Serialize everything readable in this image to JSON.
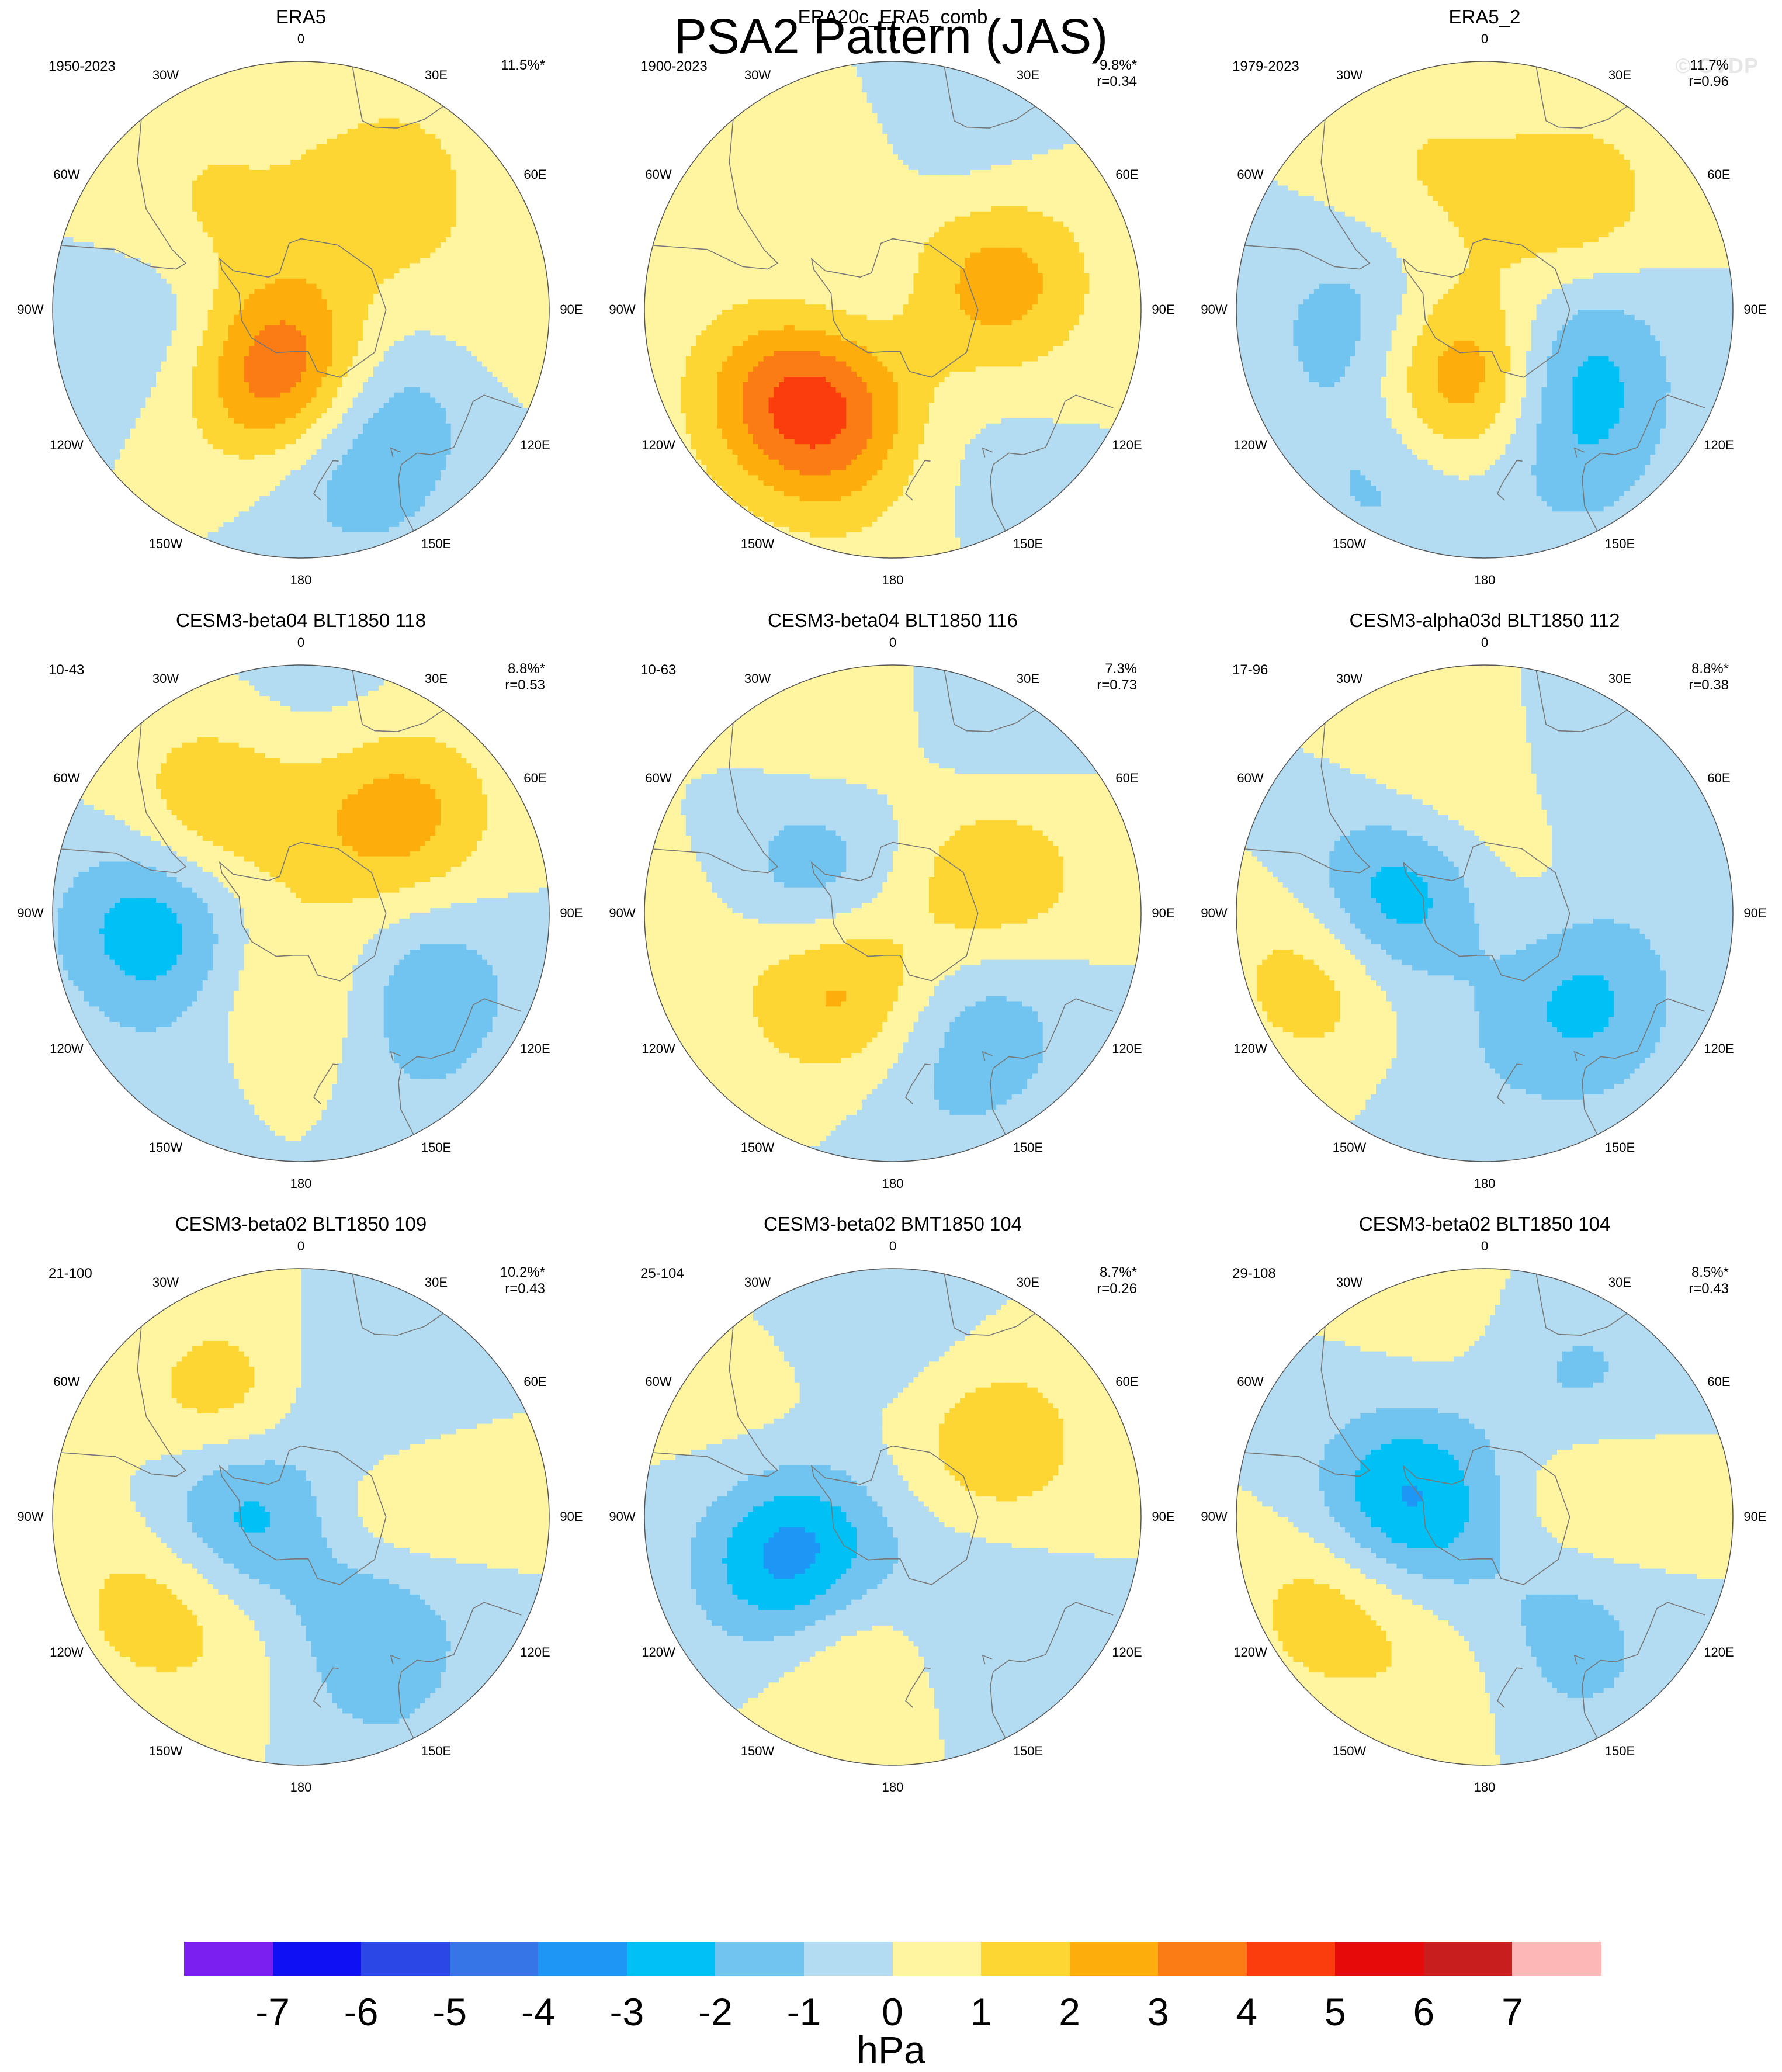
{
  "title": "PSA2 Pattern (JAS)",
  "watermark": "© CVDP",
  "lon_labels": [
    "0",
    "30E",
    "60E",
    "90E",
    "120E",
    "150E",
    "180",
    "150W",
    "120W",
    "90W",
    "60W",
    "30W"
  ],
  "colorbar": {
    "units": "hPa",
    "levels": [
      "-7",
      "-6",
      "-5",
      "-4",
      "-3",
      "-2",
      "-1",
      "0",
      "1",
      "2",
      "3",
      "4",
      "5",
      "6",
      "7"
    ],
    "colors": [
      "#7a1ff0",
      "#1010f5",
      "#2b47e6",
      "#3575e8",
      "#1e96f5",
      "#00c0f5",
      "#70c4ef",
      "#b3dcf2",
      "#fff5a0",
      "#fdd634",
      "#fdad0c",
      "#fb7c14",
      "#fb3c0c",
      "#e60a0a",
      "#c81e1e",
      "#fdb7b7"
    ]
  },
  "chart_data": [
    {
      "type": "heatmap",
      "title": "ERA5",
      "period": "1950-2023",
      "variance": "11.5%*",
      "corr": "",
      "centers": [
        {
          "lon": 30,
          "lat": -48,
          "v": 2.0
        },
        {
          "lon": -50,
          "lat": -55,
          "v": 1.2
        },
        {
          "lon": -95,
          "lat": -58,
          "v": -1.6
        },
        {
          "lon": -150,
          "lat": -72,
          "v": 2.6
        },
        {
          "lon": -170,
          "lat": -72,
          "v": 2.0
        },
        {
          "lon": 140,
          "lat": -55,
          "v": -1.7
        },
        {
          "lon": 165,
          "lat": -40,
          "v": -1.2
        },
        {
          "lon": 5,
          "lat": -35,
          "v": -0.6
        },
        {
          "lon": -20,
          "lat": -30,
          "v": 0.5
        },
        {
          "lon": 90,
          "lat": -35,
          "v": 0.6
        }
      ]
    },
    {
      "type": "heatmap",
      "title": "ERA20c_ERA5_comb",
      "period": "1900-2023",
      "variance": "9.8%*",
      "corr": "r=0.34",
      "centers": [
        {
          "lon": -145,
          "lat": -55,
          "v": 3.6
        },
        {
          "lon": -120,
          "lat": -50,
          "v": 1.5
        },
        {
          "lon": 75,
          "lat": -60,
          "v": 2.6
        },
        {
          "lon": -35,
          "lat": -55,
          "v": 1.5
        },
        {
          "lon": -60,
          "lat": -72,
          "v": -1.4
        },
        {
          "lon": 20,
          "lat": -40,
          "v": -0.8
        },
        {
          "lon": 150,
          "lat": -45,
          "v": -0.5
        },
        {
          "lon": -170,
          "lat": -35,
          "v": 0.4
        }
      ]
    },
    {
      "type": "heatmap",
      "title": "ERA5_2",
      "period": "1979-2023",
      "variance": "11.7%",
      "corr": "r=0.96",
      "centers": [
        {
          "lon": 35,
          "lat": -50,
          "v": 2.0
        },
        {
          "lon": -20,
          "lat": -45,
          "v": 1.0
        },
        {
          "lon": -100,
          "lat": -55,
          "v": -1.8
        },
        {
          "lon": -160,
          "lat": -72,
          "v": 2.8
        },
        {
          "lon": -175,
          "lat": -65,
          "v": 1.2
        },
        {
          "lon": 120,
          "lat": -62,
          "v": -2.3
        },
        {
          "lon": 150,
          "lat": -45,
          "v": -1.6
        },
        {
          "lon": -150,
          "lat": -35,
          "v": -1.3
        },
        {
          "lon": 15,
          "lat": -35,
          "v": -0.5
        }
      ]
    },
    {
      "type": "heatmap",
      "title": "CESM3-beta04 BLT1850 118",
      "period": "10-43",
      "variance": "8.8%*",
      "corr": "r=0.53",
      "centers": [
        {
          "lon": -40,
          "lat": -52,
          "v": 2.0
        },
        {
          "lon": 45,
          "lat": -52,
          "v": 2.6
        },
        {
          "lon": -95,
          "lat": -48,
          "v": -2.8
        },
        {
          "lon": 120,
          "lat": -50,
          "v": -1.8
        },
        {
          "lon": -170,
          "lat": -50,
          "v": 0.5
        },
        {
          "lon": 5,
          "lat": -30,
          "v": -0.6
        },
        {
          "lon": 180,
          "lat": -70,
          "v": 1.2
        },
        {
          "lon": -150,
          "lat": -35,
          "v": -0.6
        },
        {
          "lon": 150,
          "lat": -35,
          "v": -0.5
        }
      ]
    },
    {
      "type": "heatmap",
      "title": "CESM3-beta04 BLT1850 116",
      "period": "10-63",
      "variance": "7.3%",
      "corr": "r=0.73",
      "centers": [
        {
          "lon": -65,
          "lat": -65,
          "v": -2.2
        },
        {
          "lon": -145,
          "lat": -65,
          "v": 2.6
        },
        {
          "lon": 70,
          "lat": -60,
          "v": 2.0
        },
        {
          "lon": 140,
          "lat": -50,
          "v": -1.6
        },
        {
          "lon": -20,
          "lat": -40,
          "v": 0.8
        },
        {
          "lon": -90,
          "lat": -40,
          "v": 0.6
        },
        {
          "lon": 30,
          "lat": -35,
          "v": -0.7
        },
        {
          "lon": 170,
          "lat": -35,
          "v": -0.6
        }
      ]
    },
    {
      "type": "heatmap",
      "title": "CESM3-alpha03d BLT1850 112",
      "period": "17-96",
      "variance": "8.8%*",
      "corr": "r=0.38",
      "centers": [
        {
          "lon": -80,
          "lat": -65,
          "v": -3.3
        },
        {
          "lon": -110,
          "lat": -42,
          "v": 2.0
        },
        {
          "lon": 120,
          "lat": -60,
          "v": -1.6
        },
        {
          "lon": 140,
          "lat": -48,
          "v": -1.2
        },
        {
          "lon": 90,
          "lat": -78,
          "v": 1.1
        },
        {
          "lon": -20,
          "lat": -55,
          "v": 1.1
        },
        {
          "lon": 40,
          "lat": -40,
          "v": -0.7
        },
        {
          "lon": -170,
          "lat": -40,
          "v": -0.5
        }
      ]
    },
    {
      "type": "heatmap",
      "title": "CESM3-beta02 BLT1850 109",
      "period": "21-100",
      "variance": "10.2%*",
      "corr": "r=0.43",
      "centers": [
        {
          "lon": -35,
          "lat": -55,
          "v": 2.3
        },
        {
          "lon": 30,
          "lat": -55,
          "v": -1.6
        },
        {
          "lon": -80,
          "lat": -72,
          "v": -3.3
        },
        {
          "lon": 80,
          "lat": -65,
          "v": 1.7
        },
        {
          "lon": -120,
          "lat": -45,
          "v": 1.8
        },
        {
          "lon": 145,
          "lat": -55,
          "v": -1.9
        },
        {
          "lon": -170,
          "lat": -50,
          "v": 0.5
        },
        {
          "lon": 160,
          "lat": -35,
          "v": -0.6
        }
      ]
    },
    {
      "type": "heatmap",
      "title": "CESM3-beta02 BMT1850 104",
      "period": "25-104",
      "variance": "8.7%*",
      "corr": "r=0.26",
      "centers": [
        {
          "lon": -115,
          "lat": -60,
          "v": -4.0
        },
        {
          "lon": 55,
          "lat": -55,
          "v": 1.8
        },
        {
          "lon": -160,
          "lat": -55,
          "v": 1.9
        },
        {
          "lon": 140,
          "lat": -50,
          "v": -0.9
        },
        {
          "lon": 0,
          "lat": -35,
          "v": -0.8
        },
        {
          "lon": -60,
          "lat": -45,
          "v": 0.5
        },
        {
          "lon": 150,
          "lat": -70,
          "v": -0.5
        }
      ]
    },
    {
      "type": "heatmap",
      "title": "CESM3-beta02 BLT1850 104",
      "period": "29-108",
      "variance": "8.5%*",
      "corr": "r=0.43",
      "centers": [
        {
          "lon": -80,
          "lat": -68,
          "v": -3.4
        },
        {
          "lon": 85,
          "lat": -62,
          "v": 1.8
        },
        {
          "lon": -120,
          "lat": -42,
          "v": 1.8
        },
        {
          "lon": 35,
          "lat": -45,
          "v": -1.4
        },
        {
          "lon": 130,
          "lat": -60,
          "v": -1.3
        },
        {
          "lon": 150,
          "lat": -40,
          "v": -0.9
        },
        {
          "lon": -10,
          "lat": -40,
          "v": 0.5
        },
        {
          "lon": -170,
          "lat": -45,
          "v": 0.6
        }
      ]
    }
  ]
}
